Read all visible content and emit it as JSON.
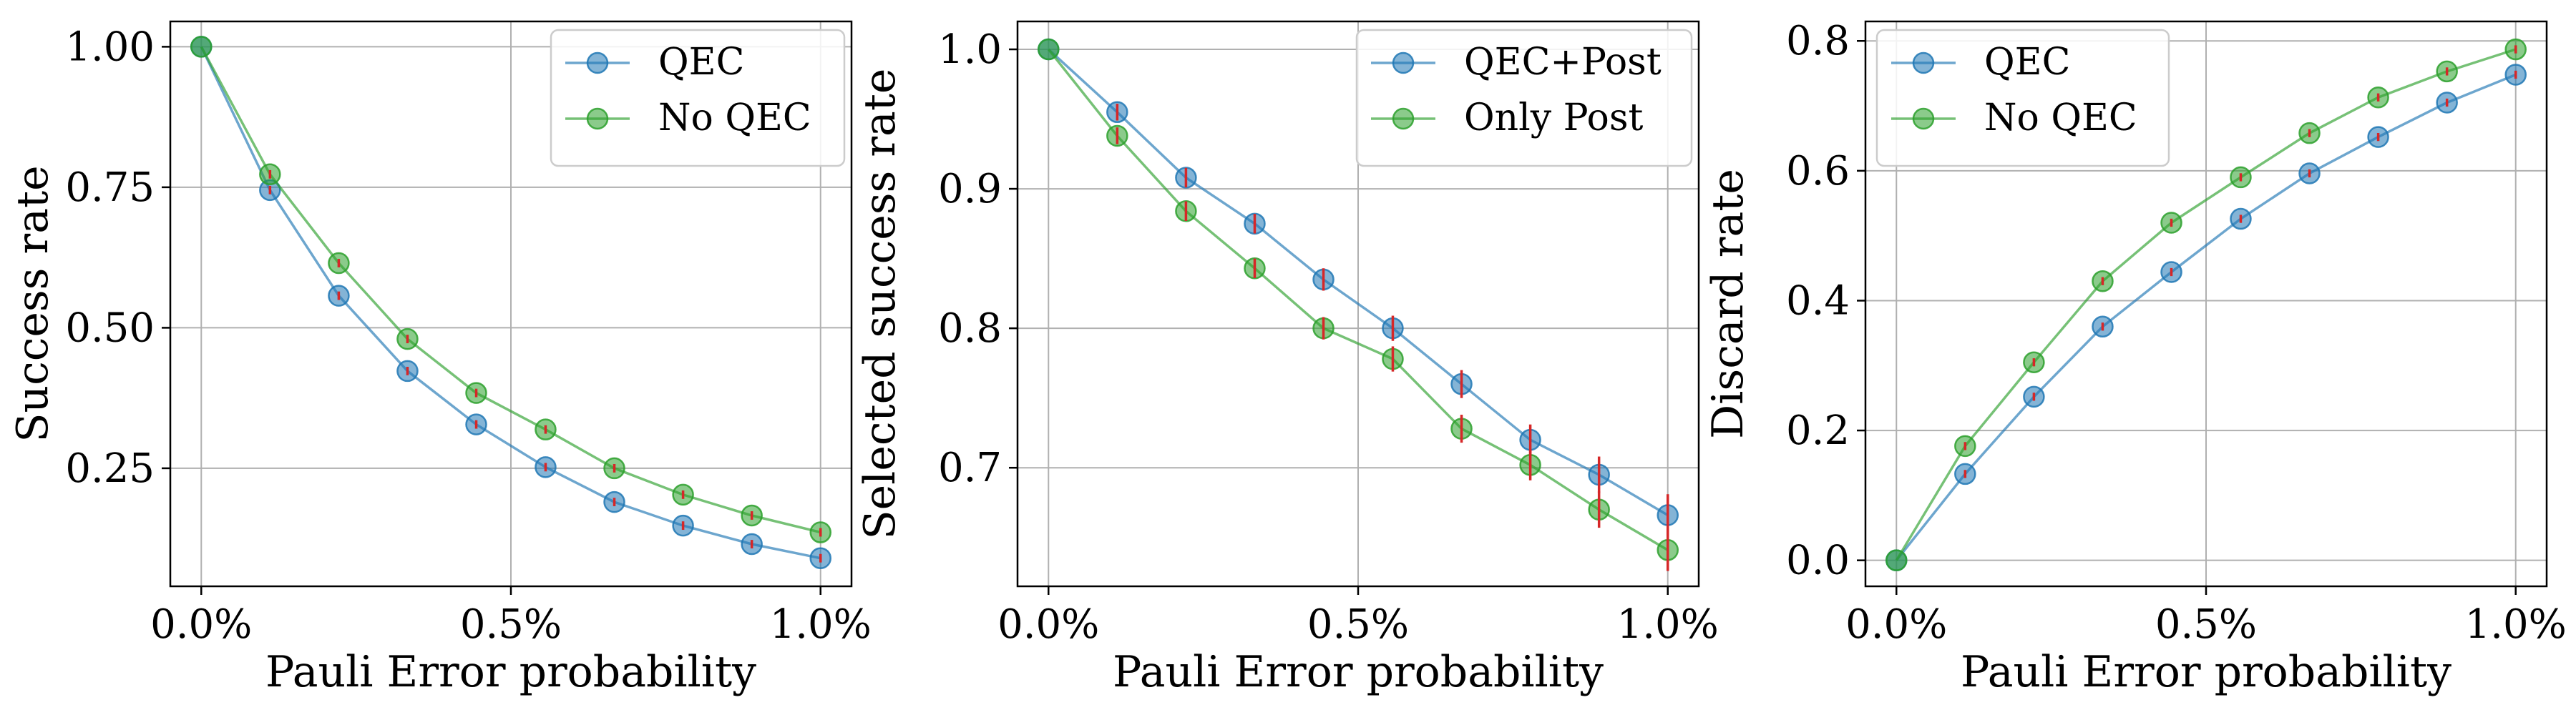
{
  "chart_data": [
    {
      "type": "line",
      "xlabel": "Pauli Error probability",
      "ylabel": "Success rate",
      "xlim": [
        -0.05,
        1.05
      ],
      "ylim": [
        0.04,
        1.045
      ],
      "xticks": [
        0.0,
        0.5,
        1.0
      ],
      "xtick_labels": [
        "0.0%",
        "0.5%",
        "1.0%"
      ],
      "yticks": [
        0.25,
        0.5,
        0.75,
        1.0
      ],
      "ytick_labels": [
        "0.25",
        "0.50",
        "0.75",
        "1.00"
      ],
      "grid": true,
      "legend_position": "top-right",
      "x": [
        0.0,
        0.111,
        0.222,
        0.333,
        0.444,
        0.556,
        0.667,
        0.778,
        0.889,
        1.0
      ],
      "series": [
        {
          "name": "QEC",
          "color": "#1f77b4",
          "values": [
            1.0,
            0.745,
            0.557,
            0.423,
            0.328,
            0.252,
            0.19,
            0.148,
            0.115,
            0.09
          ],
          "errors": [
            0,
            0.005,
            0.005,
            0.005,
            0.005,
            0.005,
            0.005,
            0.005,
            0.005,
            0.005
          ]
        },
        {
          "name": "No QEC",
          "color": "#2ca02c",
          "values": [
            1.0,
            0.773,
            0.615,
            0.48,
            0.384,
            0.319,
            0.25,
            0.203,
            0.166,
            0.136
          ],
          "errors": [
            0,
            0.005,
            0.005,
            0.005,
            0.005,
            0.005,
            0.005,
            0.005,
            0.005,
            0.005
          ]
        }
      ]
    },
    {
      "type": "line",
      "xlabel": "Pauli Error probability",
      "ylabel": "Selected success rate",
      "xlim": [
        -0.05,
        1.05
      ],
      "ylim": [
        0.615,
        1.02
      ],
      "xticks": [
        0.0,
        0.5,
        1.0
      ],
      "xtick_labels": [
        "0.0%",
        "0.5%",
        "1.0%"
      ],
      "yticks": [
        0.7,
        0.8,
        0.9,
        1.0
      ],
      "ytick_labels": [
        "0.7",
        "0.8",
        "0.9",
        "1.0"
      ],
      "grid": true,
      "legend_position": "top-right",
      "x": [
        0.0,
        0.111,
        0.222,
        0.333,
        0.444,
        0.556,
        0.667,
        0.778,
        0.889,
        1.0
      ],
      "series": [
        {
          "name": "QEC+Post",
          "color": "#1f77b4",
          "values": [
            1.0,
            0.955,
            0.908,
            0.875,
            0.835,
            0.8,
            0.76,
            0.72,
            0.695,
            0.666
          ],
          "errors": [
            0,
            0.005,
            0.006,
            0.006,
            0.007,
            0.008,
            0.009,
            0.01,
            0.012,
            0.014
          ]
        },
        {
          "name": "Only Post",
          "color": "#2ca02c",
          "values": [
            1.0,
            0.938,
            0.884,
            0.843,
            0.8,
            0.778,
            0.728,
            0.702,
            0.67,
            0.641
          ],
          "errors": [
            0,
            0.005,
            0.006,
            0.006,
            0.007,
            0.008,
            0.009,
            0.01,
            0.012,
            0.014
          ]
        }
      ]
    },
    {
      "type": "line",
      "xlabel": "Pauli Error probability",
      "ylabel": "Discard rate",
      "xlim": [
        -0.05,
        1.05
      ],
      "ylim": [
        -0.04,
        0.83
      ],
      "xticks": [
        0.0,
        0.5,
        1.0
      ],
      "xtick_labels": [
        "0.0%",
        "0.5%",
        "1.0%"
      ],
      "yticks": [
        0.0,
        0.2,
        0.4,
        0.6,
        0.8
      ],
      "ytick_labels": [
        "0.0",
        "0.2",
        "0.4",
        "0.6",
        "0.8"
      ],
      "grid": true,
      "legend_position": "top-left",
      "x": [
        0.0,
        0.111,
        0.222,
        0.333,
        0.444,
        0.556,
        0.667,
        0.778,
        0.889,
        1.0
      ],
      "series": [
        {
          "name": "QEC",
          "color": "#1f77b4",
          "values": [
            0.0,
            0.133,
            0.252,
            0.36,
            0.444,
            0.526,
            0.596,
            0.652,
            0.705,
            0.748
          ],
          "errors": [
            0,
            0.004,
            0.004,
            0.004,
            0.004,
            0.004,
            0.004,
            0.004,
            0.004,
            0.004
          ]
        },
        {
          "name": "No QEC",
          "color": "#2ca02c",
          "values": [
            0.0,
            0.176,
            0.305,
            0.43,
            0.52,
            0.59,
            0.658,
            0.713,
            0.753,
            0.787
          ],
          "errors": [
            0,
            0.004,
            0.004,
            0.004,
            0.004,
            0.004,
            0.004,
            0.004,
            0.004,
            0.004
          ]
        }
      ]
    }
  ],
  "colors": {
    "error_bar": "#d62728",
    "marker_opacity": 0.55
  }
}
